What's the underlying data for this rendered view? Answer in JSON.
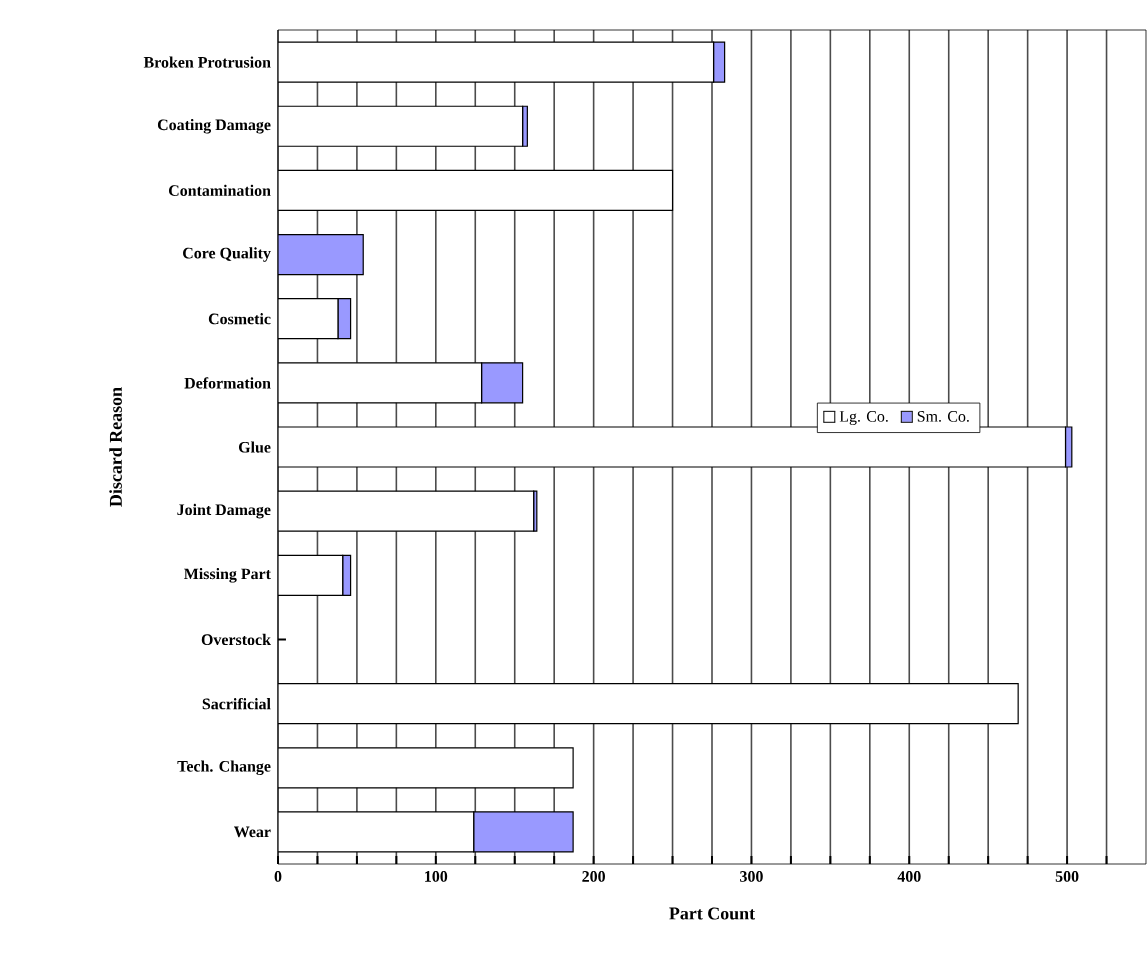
{
  "chart_data": {
    "type": "bar",
    "orientation": "horizontal",
    "stacked": true,
    "xlabel": "Part Count",
    "ylabel": "Discard Reason",
    "categories": [
      "Broken Protrusion",
      "Coating Damage",
      "Contamination",
      "Core Quality",
      "Cosmetic",
      "Deformation",
      "Glue",
      "Joint Damage",
      "Missing Part",
      "Overstock",
      "Sacrificial",
      "Tech. Change",
      "Wear"
    ],
    "series": [
      {
        "name": "Lg. Co.",
        "color": "#ffffff",
        "values": [
          276,
          155,
          250,
          0,
          38,
          129,
          499,
          162,
          41,
          0,
          469,
          187,
          124
        ]
      },
      {
        "name": "Sm. Co.",
        "color": "#9999ff",
        "values": [
          7,
          3,
          0,
          54,
          8,
          26,
          4,
          2,
          5,
          0,
          0,
          0,
          63
        ]
      }
    ],
    "xlim": [
      0,
      550
    ],
    "xticks": [
      0,
      {
        "value": 25,
        "label": null
      },
      {
        "value": 50,
        "label": null
      },
      {
        "value": 75,
        "label": null
      },
      100,
      {
        "value": 125,
        "label": null
      },
      {
        "value": 150,
        "label": null
      },
      {
        "value": 175,
        "label": null
      },
      200,
      {
        "value": 225,
        "label": null
      },
      {
        "value": 250,
        "label": null
      },
      {
        "value": 275,
        "label": null
      },
      300,
      {
        "value": 325,
        "label": null
      },
      {
        "value": 350,
        "label": null
      },
      {
        "value": 375,
        "label": null
      },
      400,
      {
        "value": 425,
        "label": null
      },
      {
        "value": 450,
        "label": null
      },
      {
        "value": 475,
        "label": null
      },
      500,
      {
        "value": 525,
        "label": null
      }
    ],
    "grid": "x",
    "legend": "right"
  }
}
